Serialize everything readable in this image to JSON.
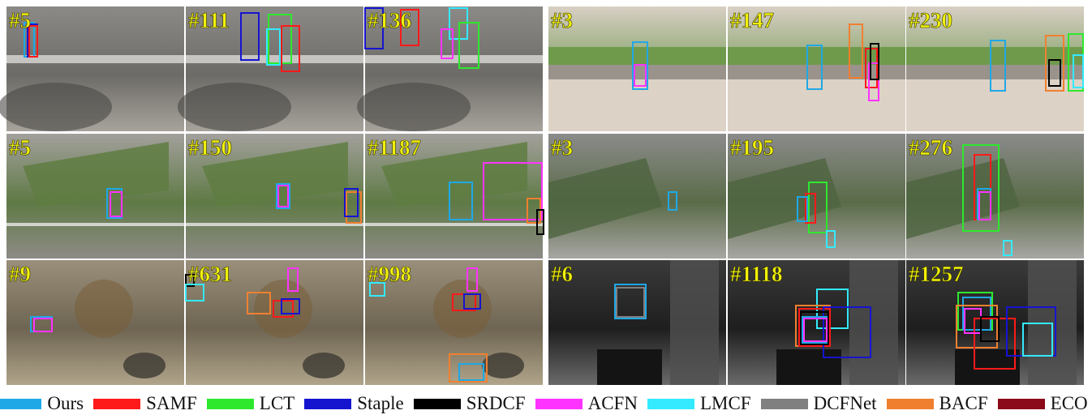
{
  "figure": {
    "rows": [
      {
        "left_frames": [
          "#5",
          "#111",
          "#136"
        ],
        "right_frames": [
          "#3",
          "#147",
          "#230"
        ]
      },
      {
        "left_frames": [
          "#5",
          "#150",
          "#1187"
        ],
        "right_frames": [
          "#3",
          "#195",
          "#276"
        ]
      },
      {
        "left_frames": [
          "#9",
          "#631",
          "#998"
        ],
        "right_frames": [
          "#6",
          "#1118",
          "#1257"
        ]
      }
    ],
    "frame_label_color": "#f2f20a"
  },
  "legend": [
    {
      "name": "Ours",
      "color": "#1fa8e6"
    },
    {
      "name": "SAMF",
      "color": "#ff1a1a"
    },
    {
      "name": "LCT",
      "color": "#2ee82e"
    },
    {
      "name": "Staple",
      "color": "#1515d0"
    },
    {
      "name": "SRDCF",
      "color": "#000000"
    },
    {
      "name": "ACFN",
      "color": "#ff33ff"
    },
    {
      "name": "LMCF",
      "color": "#33eaff"
    },
    {
      "name": "DCFNet",
      "color": "#808080"
    },
    {
      "name": "BACF",
      "color": "#f08030"
    },
    {
      "name": "ECO",
      "color": "#8b0b1a"
    }
  ]
}
